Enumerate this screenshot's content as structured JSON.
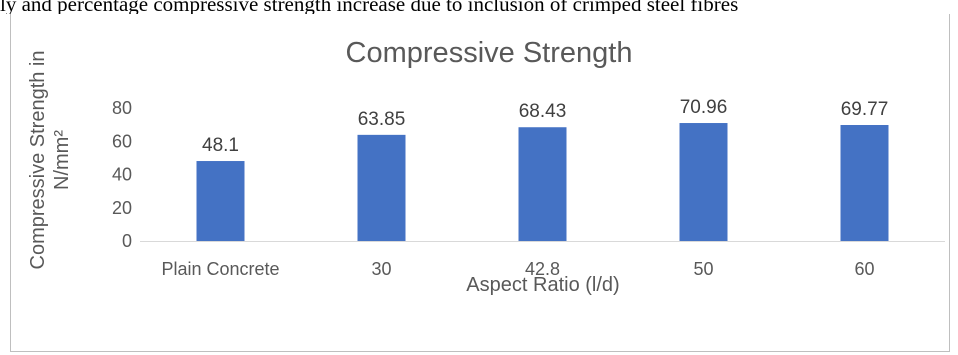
{
  "page": {
    "top_text": "ly and percentage compressive strength increase due to inclusion of crimped steel fibres"
  },
  "chart_data": {
    "type": "bar",
    "title": "Compressive Strength",
    "xlabel": "Aspect Ratio (l/d)",
    "ylabel_line1": "Compressive Strength in",
    "ylabel_line2": "N/mm²",
    "categories": [
      "Plain Concrete",
      "30",
      "42.8",
      "50",
      "60"
    ],
    "values": [
      48.1,
      63.85,
      68.43,
      70.96,
      69.77
    ],
    "value_labels": [
      "48.1",
      "63.85",
      "68.43",
      "70.96",
      "69.77"
    ],
    "ylim": [
      0,
      80
    ],
    "yticks": [
      0,
      20,
      40,
      60,
      80
    ],
    "grid": false,
    "legend": "none",
    "bar_color": "#4472C4",
    "text_color": "#595959"
  }
}
